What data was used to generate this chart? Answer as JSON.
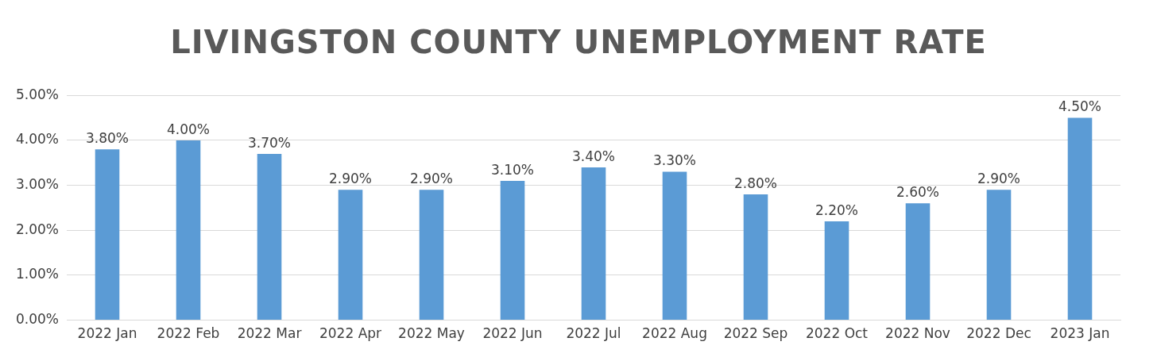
{
  "chart_data": {
    "type": "bar",
    "title": "LIVINGSTON COUNTY UNEMPLOYMENT RATE",
    "categories": [
      "2022 Jan",
      "2022 Feb",
      "2022 Mar",
      "2022 Apr",
      "2022 May",
      "2022 Jun",
      "2022 Jul",
      "2022 Aug",
      "2022 Sep",
      "2022 Oct",
      "2022 Nov",
      "2022 Dec",
      "2023 Jan"
    ],
    "values": [
      3.8,
      4.0,
      3.7,
      2.9,
      2.9,
      3.1,
      3.4,
      3.3,
      2.8,
      2.2,
      2.6,
      2.9,
      4.5
    ],
    "value_labels": [
      "3.80%",
      "4.00%",
      "3.70%",
      "2.90%",
      "2.90%",
      "3.10%",
      "3.40%",
      "3.30%",
      "2.80%",
      "2.20%",
      "2.60%",
      "2.90%",
      "4.50%"
    ],
    "color": "#5b9bd5",
    "ylim": [
      0,
      5
    ],
    "yticks": [
      {
        "value": 0,
        "label": "0.00%"
      },
      {
        "value": 1,
        "label": "1.00%"
      },
      {
        "value": 2,
        "label": "2.00%"
      },
      {
        "value": 3,
        "label": "3.00%"
      },
      {
        "value": 4,
        "label": "4.00%"
      },
      {
        "value": 5,
        "label": "5.00%"
      }
    ],
    "grid": "y"
  }
}
